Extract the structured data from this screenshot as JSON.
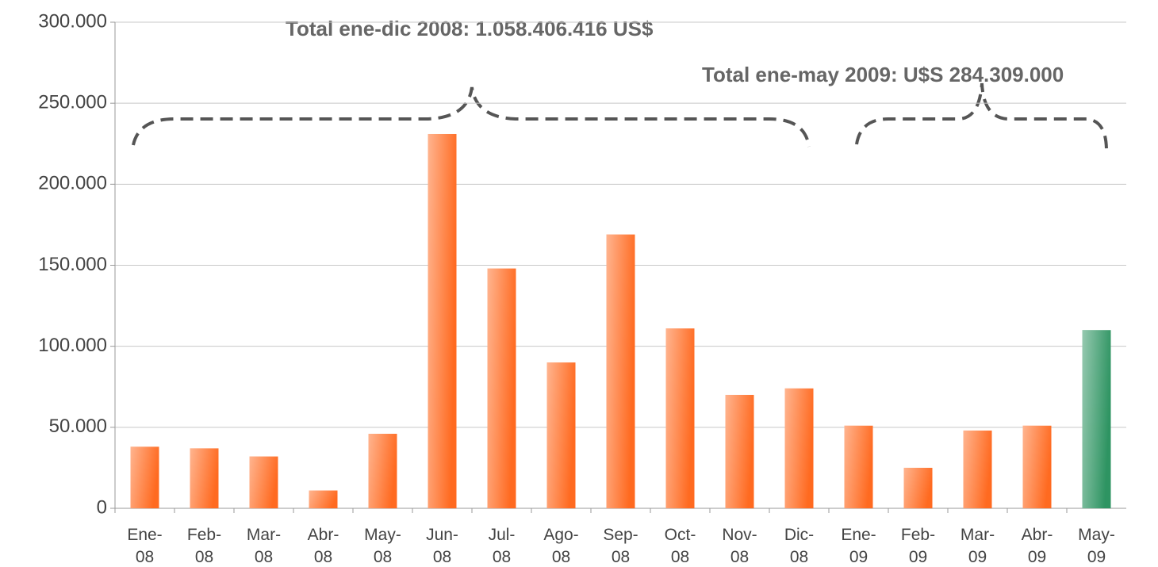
{
  "chart_data": {
    "type": "bar",
    "annotations": [
      "Total ene-dic 2008: 1.058.406.416 US$",
      "Total ene-may 2009:  U$S 284.309.000"
    ],
    "categories": [
      "Ene-08",
      "Feb-08",
      "Mar-08",
      "Abr-08",
      "May-08",
      "Jun-08",
      "Jul-08",
      "Ago-08",
      "Sep-08",
      "Oct-08",
      "Nov-08",
      "Dic-08",
      "Ene-09",
      "Feb-09",
      "Mar-09",
      "Abr-09",
      "May-09"
    ],
    "values": [
      38000,
      37000,
      32000,
      11000,
      46000,
      231000,
      148000,
      90000,
      169000,
      111000,
      70000,
      74000,
      51000,
      25000,
      48000,
      51000,
      110000
    ],
    "colors": [
      "#ff6a20",
      "#ff6a20",
      "#ff6a20",
      "#ff6a20",
      "#ff6a20",
      "#ff6a20",
      "#ff6a20",
      "#ff6a20",
      "#ff6a20",
      "#ff6a20",
      "#ff6a20",
      "#ff6a20",
      "#ff6a20",
      "#ff6a20",
      "#ff6a20",
      "#ff6a20",
      "#2e9462"
    ],
    "ylim": [
      0,
      300000
    ],
    "yticks": [
      0,
      {
        "value": 50000,
        "label": "50.000"
      },
      {
        "value": 100000,
        "label": "100.000"
      },
      {
        "value": 150000,
        "label": "150.000"
      },
      {
        "value": 200000,
        "label": "200.000"
      },
      {
        "value": 250000,
        "label": "250.000"
      },
      {
        "value": 300000,
        "label": "300.000"
      }
    ],
    "grid": true
  }
}
